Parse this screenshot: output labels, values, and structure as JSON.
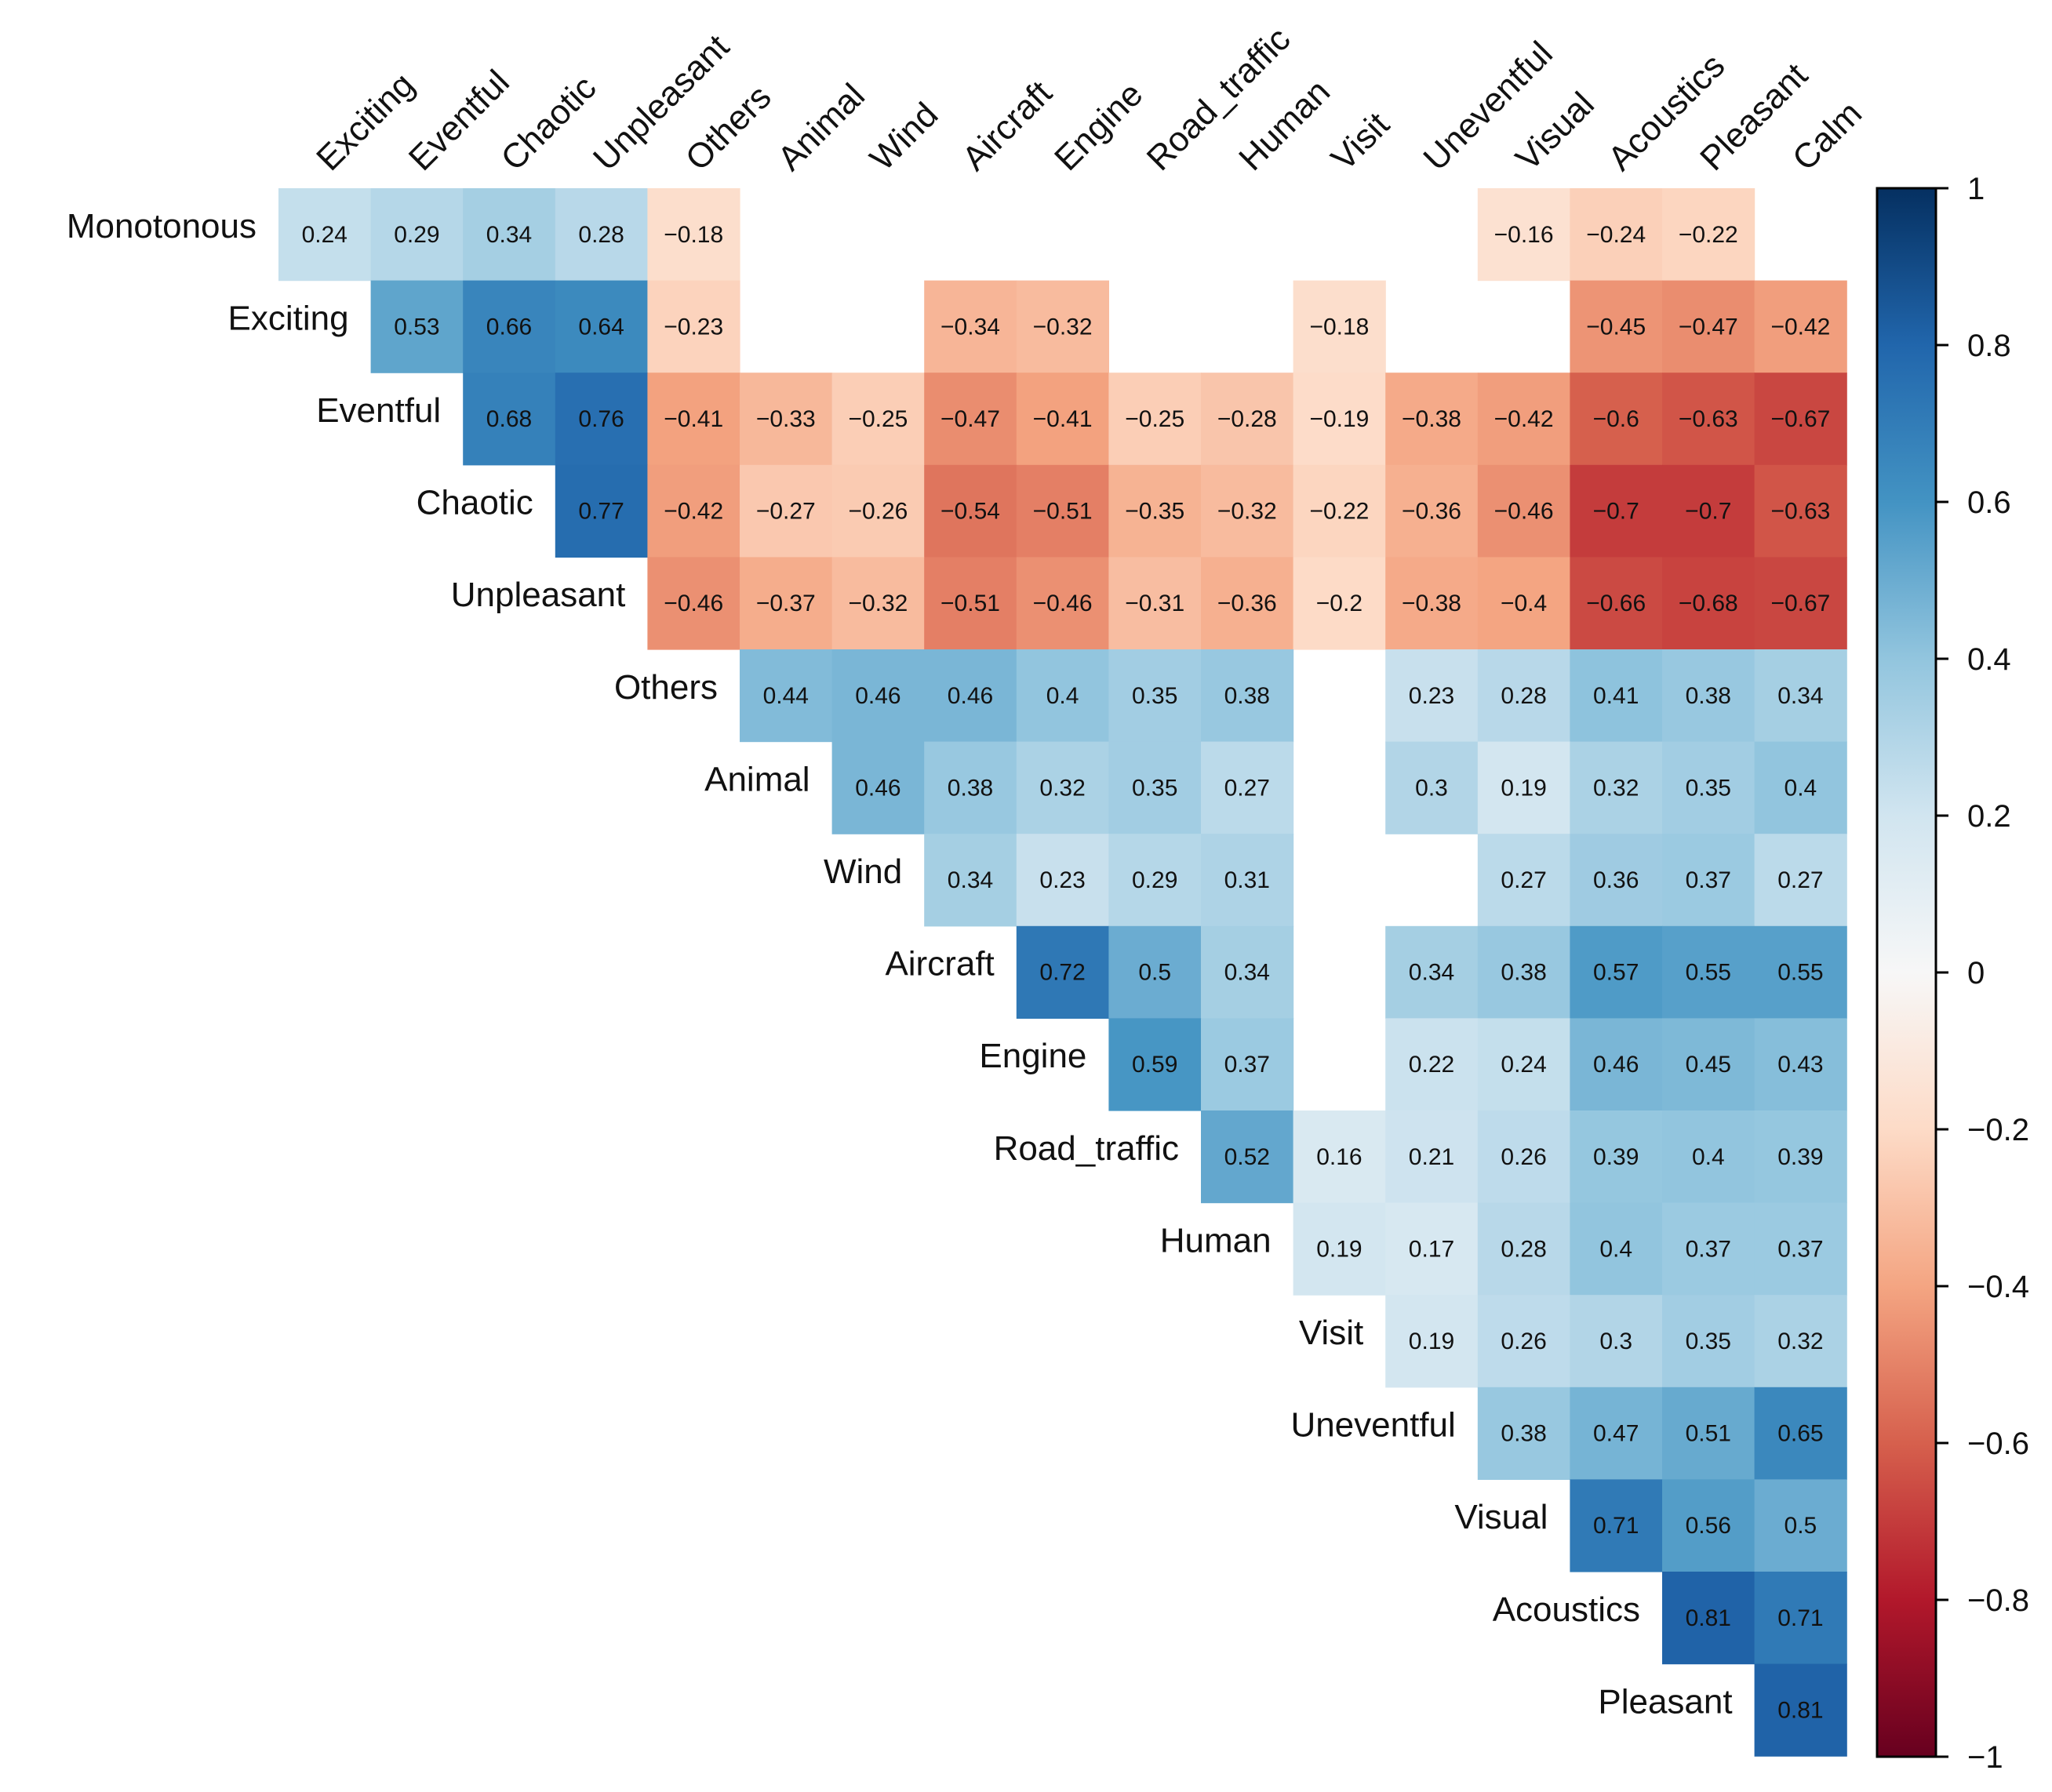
{
  "chart_data": {
    "type": "heatmap",
    "title": "",
    "rows": [
      "Monotonous",
      "Exciting",
      "Eventful",
      "Chaotic",
      "Unpleasant",
      "Others",
      "Animal",
      "Wind",
      "Aircraft",
      "Engine",
      "Road_traffic",
      "Human",
      "Visit",
      "Uneventful",
      "Visual",
      "Acoustics",
      "Pleasant"
    ],
    "columns": [
      "Exciting",
      "Eventful",
      "Chaotic",
      "Unpleasant",
      "Others",
      "Animal",
      "Wind",
      "Aircraft",
      "Engine",
      "Road_traffic",
      "Human",
      "Visit",
      "Uneventful",
      "Visual",
      "Acoustics",
      "Pleasant",
      "Calm"
    ],
    "values": [
      [
        0.24,
        0.29,
        0.34,
        0.28,
        -0.18,
        null,
        null,
        null,
        null,
        null,
        null,
        null,
        null,
        -0.16,
        -0.24,
        -0.22,
        null
      ],
      [
        null,
        0.53,
        0.66,
        0.64,
        -0.23,
        null,
        null,
        -0.34,
        -0.32,
        null,
        null,
        -0.18,
        null,
        null,
        -0.45,
        -0.47,
        -0.42
      ],
      [
        null,
        null,
        0.68,
        0.76,
        -0.41,
        -0.33,
        -0.25,
        -0.47,
        -0.41,
        -0.25,
        -0.28,
        -0.19,
        -0.38,
        -0.42,
        -0.6,
        -0.63,
        -0.67
      ],
      [
        null,
        null,
        null,
        0.77,
        -0.42,
        -0.27,
        -0.26,
        -0.54,
        -0.51,
        -0.35,
        -0.32,
        -0.22,
        -0.36,
        -0.46,
        -0.7,
        -0.7,
        -0.63
      ],
      [
        null,
        null,
        null,
        null,
        -0.46,
        -0.37,
        -0.32,
        -0.51,
        -0.46,
        -0.31,
        -0.36,
        -0.2,
        -0.38,
        -0.4,
        -0.66,
        -0.68,
        -0.67
      ],
      [
        null,
        null,
        null,
        null,
        null,
        0.44,
        0.46,
        0.46,
        0.4,
        0.35,
        0.38,
        null,
        0.23,
        0.28,
        0.41,
        0.38,
        0.34
      ],
      [
        null,
        null,
        null,
        null,
        null,
        null,
        0.46,
        0.38,
        0.32,
        0.35,
        0.27,
        null,
        0.3,
        0.19,
        0.32,
        0.35,
        0.4
      ],
      [
        null,
        null,
        null,
        null,
        null,
        null,
        null,
        0.34,
        0.23,
        0.29,
        0.31,
        null,
        null,
        0.27,
        0.36,
        0.37,
        0.27
      ],
      [
        null,
        null,
        null,
        null,
        null,
        null,
        null,
        null,
        0.72,
        0.5,
        0.34,
        null,
        0.34,
        0.38,
        0.57,
        0.55,
        0.55
      ],
      [
        null,
        null,
        null,
        null,
        null,
        null,
        null,
        null,
        null,
        0.59,
        0.37,
        null,
        0.22,
        0.24,
        0.46,
        0.45,
        0.43
      ],
      [
        null,
        null,
        null,
        null,
        null,
        null,
        null,
        null,
        null,
        null,
        0.52,
        0.16,
        0.21,
        0.26,
        0.39,
        0.4,
        0.39
      ],
      [
        null,
        null,
        null,
        null,
        null,
        null,
        null,
        null,
        null,
        null,
        null,
        0.19,
        0.17,
        0.28,
        0.4,
        0.37,
        0.37
      ],
      [
        null,
        null,
        null,
        null,
        null,
        null,
        null,
        null,
        null,
        null,
        null,
        null,
        0.19,
        0.26,
        0.3,
        0.35,
        0.32
      ],
      [
        null,
        null,
        null,
        null,
        null,
        null,
        null,
        null,
        null,
        null,
        null,
        null,
        null,
        0.38,
        0.47,
        0.51,
        0.65
      ],
      [
        null,
        null,
        null,
        null,
        null,
        null,
        null,
        null,
        null,
        null,
        null,
        null,
        null,
        null,
        0.71,
        0.56,
        0.5
      ],
      [
        null,
        null,
        null,
        null,
        null,
        null,
        null,
        null,
        null,
        null,
        null,
        null,
        null,
        null,
        null,
        0.81,
        0.71
      ],
      [
        null,
        null,
        null,
        null,
        null,
        null,
        null,
        null,
        null,
        null,
        null,
        null,
        null,
        null,
        null,
        null,
        0.81
      ]
    ],
    "colorbar": {
      "range": [
        -1,
        1
      ],
      "ticks": [
        1,
        0.8,
        0.6,
        0.4,
        0.2,
        0,
        -0.2,
        -0.4,
        -0.6,
        -0.8,
        -1
      ],
      "tick_labels": [
        "1",
        "0.8",
        "0.6",
        "0.4",
        "0.2",
        "0",
        "−0.2",
        "−0.4",
        "−0.6",
        "−0.8",
        "−1"
      ]
    },
    "colormap": [
      "#67001f",
      "#b2182b",
      "#d6604d",
      "#f4a582",
      "#fddbc7",
      "#f7f7f7",
      "#d1e5f0",
      "#92c5de",
      "#4393c3",
      "#2166ac",
      "#053061"
    ],
    "legend": "colorbar right"
  }
}
